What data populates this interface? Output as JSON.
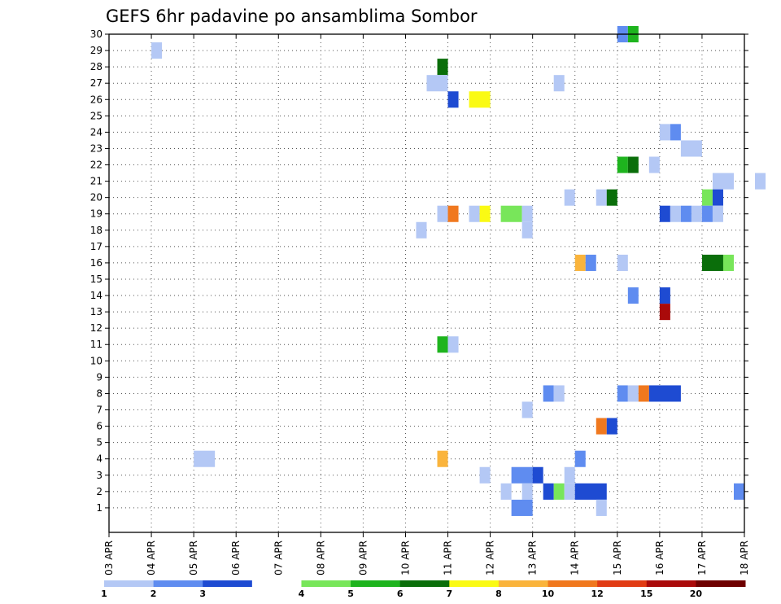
{
  "chart_data": {
    "type": "heatmap",
    "title": "GEFS 6hr padavine po ansamblima Sombor",
    "xlabel": "",
    "ylabel": "",
    "grid": true,
    "x_range": [
      "03 APR 00Z",
      "18 APR 00Z"
    ],
    "y_range": [
      0,
      30
    ],
    "x_ticks": [
      "03 APR",
      "04 APR",
      "05 APR",
      "06 APR",
      "07 APR",
      "08 APR",
      "09 APR",
      "10 APR",
      "11 APR",
      "12 APR",
      "13 APR",
      "14 APR",
      "15 APR",
      "16 APR",
      "17 APR",
      "18 APR"
    ],
    "y_ticks": [
      "1",
      "2",
      "3",
      "4",
      "5",
      "6",
      "7",
      "8",
      "9",
      "10",
      "11",
      "12",
      "13",
      "14",
      "15",
      "16",
      "17",
      "18",
      "19",
      "20",
      "21",
      "22",
      "23",
      "24",
      "25",
      "26",
      "27",
      "28",
      "29",
      "30"
    ],
    "colorbar": {
      "labels": [
        "1",
        "2",
        "3",
        "4",
        "5",
        "6",
        "7",
        "8",
        "10",
        "12",
        "15",
        "20"
      ],
      "colors": [
        "#b4c8f5",
        "#5f8cf0",
        "#1e4bd2",
        "#ffffff",
        "#78e65a",
        "#1eb41e",
        "#0a6e0a",
        "#fafa14",
        "#fab43c",
        "#f0781e",
        "#e13c14",
        "#aa0a0a",
        "#6e0000"
      ]
    },
    "cells": [
      {
        "member": 30,
        "x": 12.0,
        "dx": 0.25,
        "color": "#5f8cf0"
      },
      {
        "member": 30,
        "x": 12.25,
        "dx": 0.25,
        "color": "#1eb41e"
      },
      {
        "member": 29,
        "x": 1.0,
        "dx": 0.25,
        "color": "#b4c8f5"
      },
      {
        "member": 28,
        "x": 7.75,
        "dx": 0.25,
        "color": "#0a6e0a"
      },
      {
        "member": 27,
        "x": 7.5,
        "dx": 0.5,
        "color": "#b4c8f5"
      },
      {
        "member": 27,
        "x": 10.5,
        "dx": 0.25,
        "color": "#b4c8f5"
      },
      {
        "member": 26,
        "x": 8.0,
        "dx": 0.25,
        "color": "#1e4bd2"
      },
      {
        "member": 26,
        "x": 8.5,
        "dx": 0.5,
        "color": "#fafa14"
      },
      {
        "member": 24,
        "x": 13.0,
        "dx": 0.25,
        "color": "#b4c8f5"
      },
      {
        "member": 24,
        "x": 13.25,
        "dx": 0.25,
        "color": "#5f8cf0"
      },
      {
        "member": 23,
        "x": 13.5,
        "dx": 0.5,
        "color": "#b4c8f5"
      },
      {
        "member": 22,
        "x": 12.0,
        "dx": 0.25,
        "color": "#1eb41e"
      },
      {
        "member": 22,
        "x": 12.25,
        "dx": 0.25,
        "color": "#0a6e0a"
      },
      {
        "member": 22,
        "x": 12.75,
        "dx": 0.25,
        "color": "#b4c8f5"
      },
      {
        "member": 21,
        "x": 14.25,
        "dx": 0.5,
        "color": "#b4c8f5"
      },
      {
        "member": 21,
        "x": 15.25,
        "dx": 0.25,
        "color": "#b4c8f5"
      },
      {
        "member": 20,
        "x": 10.75,
        "dx": 0.25,
        "color": "#b4c8f5"
      },
      {
        "member": 20,
        "x": 11.5,
        "dx": 0.25,
        "color": "#b4c8f5"
      },
      {
        "member": 20,
        "x": 11.75,
        "dx": 0.25,
        "color": "#0a6e0a"
      },
      {
        "member": 20,
        "x": 14.0,
        "dx": 0.25,
        "color": "#78e65a"
      },
      {
        "member": 20,
        "x": 14.25,
        "dx": 0.25,
        "color": "#1e4bd2"
      },
      {
        "member": 19,
        "x": 7.75,
        "dx": 0.25,
        "color": "#b4c8f5"
      },
      {
        "member": 19,
        "x": 8.0,
        "dx": 0.25,
        "color": "#f0781e"
      },
      {
        "member": 19,
        "x": 8.5,
        "dx": 0.25,
        "color": "#b4c8f5"
      },
      {
        "member": 19,
        "x": 8.75,
        "dx": 0.25,
        "color": "#fafa14"
      },
      {
        "member": 19,
        "x": 9.25,
        "dx": 0.5,
        "color": "#78e65a"
      },
      {
        "member": 19,
        "x": 9.75,
        "dx": 0.25,
        "color": "#b4c8f5"
      },
      {
        "member": 19,
        "x": 13.0,
        "dx": 0.25,
        "color": "#1e4bd2"
      },
      {
        "member": 19,
        "x": 13.25,
        "dx": 0.25,
        "color": "#b4c8f5"
      },
      {
        "member": 19,
        "x": 13.5,
        "dx": 0.25,
        "color": "#5f8cf0"
      },
      {
        "member": 19,
        "x": 13.75,
        "dx": 0.25,
        "color": "#b4c8f5"
      },
      {
        "member": 19,
        "x": 14.0,
        "dx": 0.25,
        "color": "#5f8cf0"
      },
      {
        "member": 19,
        "x": 14.25,
        "dx": 0.25,
        "color": "#b4c8f5"
      },
      {
        "member": 18,
        "x": 7.25,
        "dx": 0.25,
        "color": "#b4c8f5"
      },
      {
        "member": 18,
        "x": 9.75,
        "dx": 0.25,
        "color": "#b4c8f5"
      },
      {
        "member": 16,
        "x": 12.0,
        "dx": 0.25,
        "color": "#b4c8f5"
      },
      {
        "member": 16,
        "x": 11.0,
        "dx": 0.25,
        "color": "#fab43c"
      },
      {
        "member": 16,
        "x": 11.25,
        "dx": 0.25,
        "color": "#5f8cf0"
      },
      {
        "member": 16,
        "x": 14.0,
        "dx": 0.5,
        "color": "#0a6e0a"
      },
      {
        "member": 16,
        "x": 14.5,
        "dx": 0.25,
        "color": "#78e65a"
      },
      {
        "member": 14,
        "x": 12.25,
        "dx": 0.25,
        "color": "#5f8cf0"
      },
      {
        "member": 14,
        "x": 13.0,
        "dx": 0.25,
        "color": "#1e4bd2"
      },
      {
        "member": 13,
        "x": 13.0,
        "dx": 0.25,
        "color": "#aa0a0a"
      },
      {
        "member": 11,
        "x": 7.75,
        "dx": 0.25,
        "color": "#1eb41e"
      },
      {
        "member": 11,
        "x": 8.0,
        "dx": 0.25,
        "color": "#b4c8f5"
      },
      {
        "member": 8,
        "x": 10.25,
        "dx": 0.25,
        "color": "#5f8cf0"
      },
      {
        "member": 8,
        "x": 10.5,
        "dx": 0.25,
        "color": "#b4c8f5"
      },
      {
        "member": 8,
        "x": 12.0,
        "dx": 0.25,
        "color": "#5f8cf0"
      },
      {
        "member": 8,
        "x": 12.25,
        "dx": 0.25,
        "color": "#b4c8f5"
      },
      {
        "member": 8,
        "x": 12.5,
        "dx": 0.25,
        "color": "#f0781e"
      },
      {
        "member": 8,
        "x": 12.75,
        "dx": 0.75,
        "color": "#1e4bd2"
      },
      {
        "member": 7,
        "x": 9.75,
        "dx": 0.25,
        "color": "#b4c8f5"
      },
      {
        "member": 6,
        "x": 11.5,
        "dx": 0.25,
        "color": "#f0781e"
      },
      {
        "member": 6,
        "x": 11.75,
        "dx": 0.25,
        "color": "#1e4bd2"
      },
      {
        "member": 4,
        "x": 2.0,
        "dx": 0.5,
        "color": "#b4c8f5"
      },
      {
        "member": 4,
        "x": 7.75,
        "dx": 0.25,
        "color": "#fab43c"
      },
      {
        "member": 4,
        "x": 11.0,
        "dx": 0.25,
        "color": "#5f8cf0"
      },
      {
        "member": 3,
        "x": 8.75,
        "dx": 0.25,
        "color": "#b4c8f5"
      },
      {
        "member": 3,
        "x": 9.5,
        "dx": 0.5,
        "color": "#5f8cf0"
      },
      {
        "member": 3,
        "x": 10.0,
        "dx": 0.25,
        "color": "#1e4bd2"
      },
      {
        "member": 3,
        "x": 10.75,
        "dx": 0.25,
        "color": "#b4c8f5"
      },
      {
        "member": 2,
        "x": 9.25,
        "dx": 0.25,
        "color": "#b4c8f5"
      },
      {
        "member": 2,
        "x": 9.75,
        "dx": 0.25,
        "color": "#b4c8f5"
      },
      {
        "member": 2,
        "x": 10.25,
        "dx": 0.25,
        "color": "#1e4bd2"
      },
      {
        "member": 2,
        "x": 10.5,
        "dx": 0.25,
        "color": "#78e65a"
      },
      {
        "member": 2,
        "x": 10.75,
        "dx": 0.25,
        "color": "#b4c8f5"
      },
      {
        "member": 2,
        "x": 11.0,
        "dx": 0.75,
        "color": "#1e4bd2"
      },
      {
        "member": 2,
        "x": 14.75,
        "dx": 0.25,
        "color": "#5f8cf0"
      },
      {
        "member": 1,
        "x": 9.5,
        "dx": 0.5,
        "color": "#5f8cf0"
      },
      {
        "member": 1,
        "x": 11.5,
        "dx": 0.25,
        "color": "#b4c8f5"
      }
    ]
  }
}
